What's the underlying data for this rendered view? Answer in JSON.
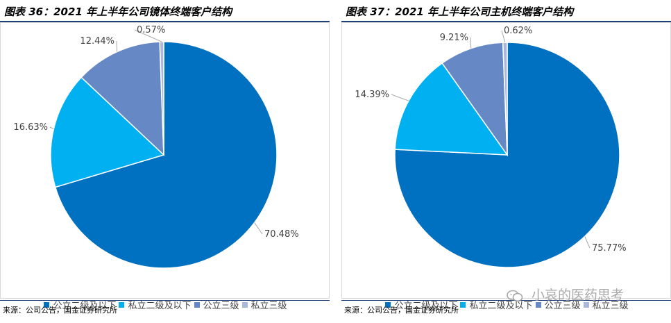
{
  "panels": [
    {
      "title": "图表 36：2021 年上半年公司镜体终端客户结构",
      "source": "来源：公司公告，国金证券研究所"
    },
    {
      "title": "图表 37：2021 年上半年公司主机终端客户结构",
      "source": "来源：公司公告，国金证券研究所"
    }
  ],
  "colors": {
    "公立二级及以下": "#0070c0",
    "私立二级及以下": "#00b0f0",
    "公立三级": "#6688c4",
    "私立三级": "#a9b8dc",
    "title_rule": "#1f3f7a"
  },
  "watermark": {
    "text": "小哀的医药思考",
    "icon": "wechat-icon"
  },
  "chart_data": [
    {
      "type": "pie",
      "categories": [
        "公立二级及以下",
        "私立二级及以下",
        "公立三级",
        "私立三级"
      ],
      "values": [
        70.48,
        16.63,
        12.44,
        0.57
      ],
      "value_labels": [
        "70.48%",
        "16.63%",
        "12.44%",
        "0.57%"
      ],
      "legend_position": "bottom"
    },
    {
      "type": "pie",
      "categories": [
        "公立二级及以下",
        "私立二级及以下",
        "公立三级",
        "私立三级"
      ],
      "values": [
        75.77,
        14.39,
        9.21,
        0.62
      ],
      "value_labels": [
        "75.77%",
        "14.39%",
        "9.21%",
        "0.62%"
      ],
      "legend_position": "bottom"
    }
  ]
}
